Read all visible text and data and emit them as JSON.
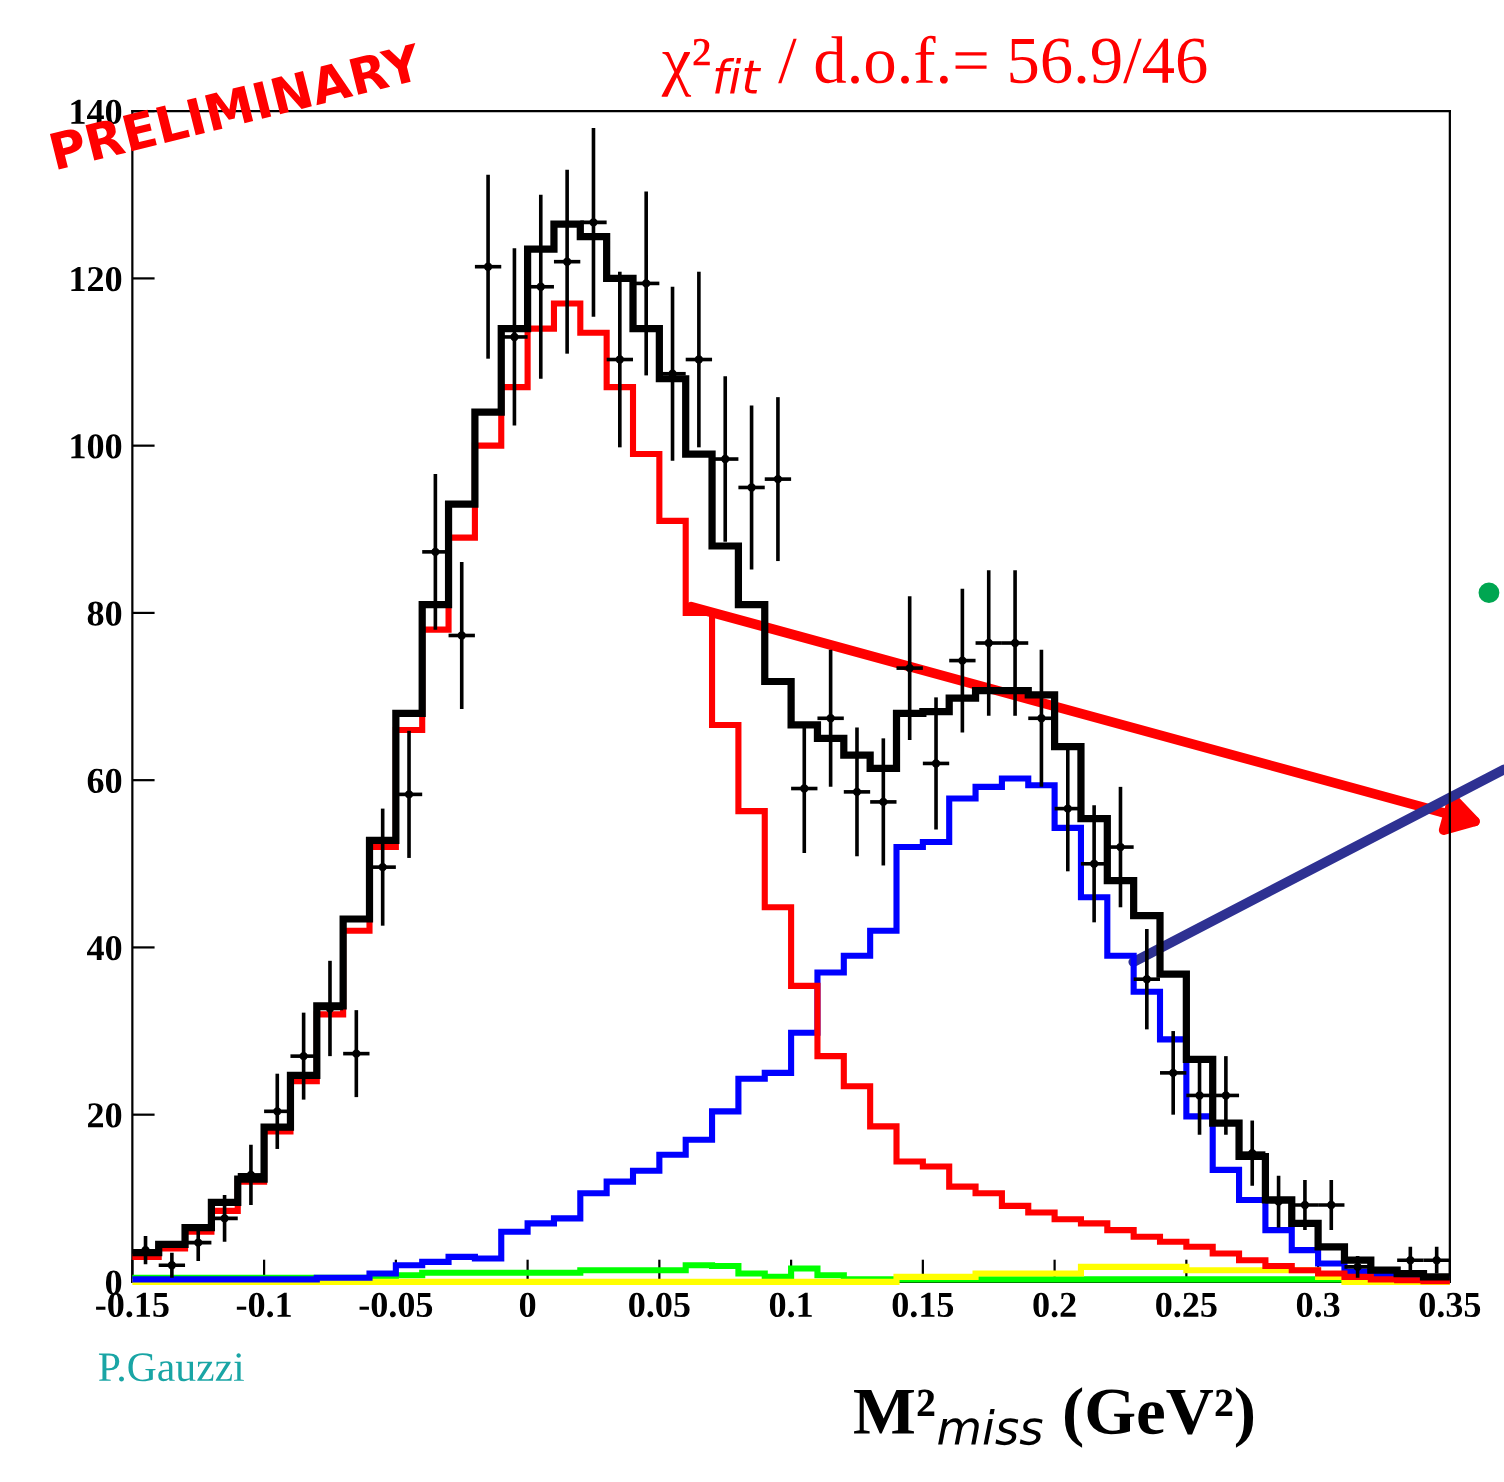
{
  "chart_data": {
    "type": "histogram",
    "bins": [
      -0.15,
      -0.14,
      -0.13,
      -0.12,
      -0.11,
      -0.1,
      -0.09,
      -0.08,
      -0.07,
      -0.06,
      -0.05,
      -0.04,
      -0.03,
      -0.02,
      -0.01,
      0,
      0.01,
      0.02,
      0.03,
      0.04,
      0.05,
      0.06,
      0.07,
      0.08,
      0.09,
      0.1,
      0.11,
      0.12,
      0.13,
      0.14,
      0.15,
      0.16,
      0.17,
      0.18,
      0.19,
      0.2,
      0.21,
      0.22,
      0.23,
      0.24,
      0.25,
      0.26,
      0.27,
      0.28,
      0.29,
      0.3,
      0.31,
      0.32,
      0.33,
      0.34,
      0.35
    ],
    "series": [
      {
        "color": "#00ff00",
        "values": [
          0.5,
          0.5,
          0.5,
          0.5,
          0.5,
          0.5,
          0.5,
          0.5,
          0.5,
          0.5,
          0.8,
          1.1,
          1.1,
          1.1,
          1.1,
          1.1,
          1.1,
          1.4,
          1.4,
          1.4,
          1.4,
          2,
          1.9,
          1,
          0.6,
          1.6,
          0.8,
          0.3,
          0.3,
          0.3,
          0.3,
          0.3,
          0.3,
          0.3,
          0.3,
          0.3,
          0.3,
          0.3,
          0.3,
          0.3,
          0.3,
          0.3,
          0.3,
          0.3,
          0.3,
          0.3,
          0.3,
          0.3,
          0.3,
          0.3
        ]
      },
      {
        "color": "#ffff00",
        "values": [
          0,
          0,
          0,
          0,
          0,
          0,
          0,
          0,
          0,
          0,
          0,
          0,
          0,
          0,
          0,
          0,
          0,
          0,
          0,
          0,
          0,
          0,
          0,
          0,
          0,
          0,
          0,
          0,
          0,
          0.6,
          0.6,
          0.6,
          1,
          1,
          1,
          1,
          1.8,
          1.8,
          1.8,
          1.8,
          1.4,
          1.4,
          1.4,
          1.4,
          1.4,
          0.6,
          0,
          0,
          0,
          0
        ]
      },
      {
        "color": "#0000ff",
        "values": [
          0.3,
          0.3,
          0.3,
          0.3,
          0.3,
          0.3,
          0.3,
          0.5,
          0.5,
          1,
          2,
          2.4,
          3,
          2.8,
          6,
          7,
          7.6,
          10.6,
          12,
          13.3,
          15.2,
          17,
          20.4,
          24.3,
          25,
          29.8,
          37,
          39,
          42,
          52,
          52.6,
          57.8,
          59.2,
          60.2,
          59.4,
          54.3,
          46,
          39,
          34.7,
          29,
          19.8,
          13.4,
          9.8,
          6.2,
          3.8,
          2.2,
          1.2,
          0.8,
          0.5,
          0.3
        ]
      },
      {
        "color": "#ff0000",
        "values": [
          3,
          4,
          6,
          8.5,
          12,
          18,
          24,
          32,
          42,
          52,
          66,
          78,
          89,
          100,
          107,
          114,
          117,
          113.5,
          107,
          99,
          91,
          80,
          66.6,
          56.3,
          44.8,
          35.4,
          27,
          23.4,
          18.6,
          14.4,
          13.8,
          11.4,
          10.6,
          9.1,
          8.3,
          7.5,
          7,
          6.2,
          5.4,
          4.8,
          4.2,
          3.4,
          2.6,
          1.9,
          1.4,
          1,
          0.6,
          0.3,
          0.2,
          0.1
        ]
      },
      {
        "color": "#000000",
        "values": [
          3.5,
          4.5,
          6.5,
          9.5,
          12.3,
          18.5,
          24.7,
          33,
          43.4,
          52.8,
          68,
          81,
          93,
          104,
          114,
          123.5,
          126.5,
          125,
          120,
          114,
          108,
          99,
          88,
          81,
          71.8,
          66.6,
          65,
          63,
          61.4,
          68,
          68.2,
          69.8,
          70.7,
          70.7,
          70.2,
          64,
          55.4,
          48,
          43.8,
          36.8,
          26.6,
          19,
          15,
          9.8,
          7,
          4.2,
          2.6,
          1.4,
          1,
          0.6
        ]
      },
      {
        "type": "scatter",
        "color": "#000000",
        "marker": "circle",
        "x": [
          -0.145,
          -0.135,
          -0.125,
          -0.115,
          -0.105,
          -0.095,
          -0.085,
          -0.075,
          -0.065,
          -0.055,
          -0.045,
          -0.035,
          -0.025,
          -0.015,
          -0.005,
          0.005,
          0.015,
          0.025,
          0.035,
          0.045,
          0.055,
          0.065,
          0.075,
          0.085,
          0.095,
          0.105,
          0.115,
          0.125,
          0.135,
          0.145,
          0.155,
          0.165,
          0.175,
          0.185,
          0.195,
          0.205,
          0.215,
          0.225,
          0.235,
          0.245,
          0.255,
          0.265,
          0.275,
          0.285,
          0.295,
          0.305,
          0.315,
          0.335,
          0.345
        ],
        "values": [
          3.8,
          2,
          4.7,
          7.6,
          12.8,
          20.4,
          27,
          32.7,
          27.3,
          49.6,
          58.3,
          87.3,
          77.3,
          121.4,
          113,
          119,
          122,
          126.7,
          110.3,
          119.4,
          108.6,
          110.3,
          98.4,
          95,
          96,
          59,
          67.4,
          58.6,
          57.4,
          73.4,
          62,
          74.3,
          76.4,
          76.4,
          67.4,
          56.6,
          50,
          52,
          36.2,
          25,
          22.3,
          22.3,
          15.4,
          9.6,
          9.2,
          9.2,
          1.8,
          2.6,
          2.6
        ],
        "errors": [
          1.7,
          1.5,
          2.2,
          2.8,
          3.6,
          4.5,
          5.2,
          5.7,
          5.2,
          7,
          7.6,
          9.3,
          8.8,
          11,
          10.6,
          11,
          11,
          11.3,
          10.5,
          11,
          10.4,
          10.5,
          9.9,
          9.8,
          9.8,
          7.7,
          8.2,
          7.7,
          7.6,
          8.6,
          7.9,
          8.6,
          8.7,
          8.7,
          8.2,
          7.5,
          7,
          7.2,
          6,
          5,
          4.7,
          4.7,
          3.9,
          3.1,
          3,
          3,
          1.3,
          1.6,
          1.6
        ],
        "xerrors": [
          null,
          0.005,
          0.005,
          0.005,
          0.005,
          0.005,
          0.005,
          0.005,
          0.005,
          0.005,
          0.005,
          0.005,
          0.005,
          0.005,
          0.005,
          0.005,
          0.005,
          0.005,
          0.005,
          0.005,
          0.005,
          0.005,
          0.005,
          0.005,
          0.005,
          0.005,
          0.005,
          0.005,
          0.005,
          0.005,
          0.005,
          0.005,
          0.005,
          0.005,
          0.005,
          0.005,
          0.005,
          0.005,
          0.005,
          0.005,
          0.005,
          0.005,
          0.005,
          0.005,
          0.005,
          0.005,
          0.005,
          0.005,
          0.005
        ]
      }
    ],
    "xlabel": "M²$_{miss}$ (GeV²)",
    "annotations": [
      "PRELIMINARY",
      "χ²$_{fit}$ / d.o.f.= 56.9/46",
      "P.Gauzzi"
    ],
    "xlim": [
      -0.15,
      0.35
    ],
    "xticks": [
      -0.15,
      -0.1,
      -0.05,
      0,
      0.05,
      0.1,
      0.15,
      0.2,
      0.25,
      0.3,
      0.35
    ],
    "ylim": [
      0,
      140
    ],
    "yticks": [
      0,
      20,
      40,
      60,
      80,
      100,
      120,
      140
    ],
    "grid": false,
    "legend": false
  }
}
